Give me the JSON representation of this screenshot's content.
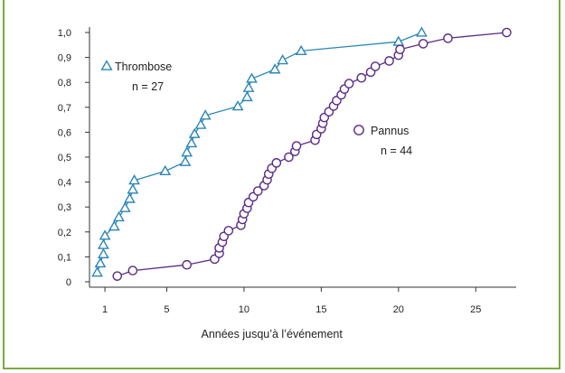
{
  "chart_data": {
    "type": "scatter",
    "title": "",
    "xlabel": "Années jusqu’à l’événement",
    "ylabel": "",
    "xlim": [
      0,
      27.5
    ],
    "ylim": [
      0,
      1.0
    ],
    "x_ticks": [
      1,
      5,
      10,
      15,
      20,
      25
    ],
    "y_ticks": [
      0,
      0.1,
      0.2,
      0.3,
      0.4,
      0.5,
      0.6,
      0.7,
      0.8,
      0.9,
      1.0
    ],
    "y_tick_labels": [
      "0",
      "0,1",
      "0,2",
      "0,3",
      "0,4",
      "0,5",
      "0,6",
      "0,7",
      "0,8",
      "0,9",
      "1,0"
    ],
    "grid": false,
    "series": [
      {
        "name": "Thrombose",
        "annotation": "n = 27",
        "marker": "triangle",
        "color": "#2a86b8",
        "points": [
          [
            0.5,
            0.037
          ],
          [
            0.7,
            0.074
          ],
          [
            0.9,
            0.111
          ],
          [
            0.9,
            0.148
          ],
          [
            1.0,
            0.185
          ],
          [
            1.6,
            0.222
          ],
          [
            1.9,
            0.259
          ],
          [
            2.3,
            0.296
          ],
          [
            2.6,
            0.333
          ],
          [
            2.8,
            0.37
          ],
          [
            2.9,
            0.407
          ],
          [
            4.9,
            0.444
          ],
          [
            6.2,
            0.481
          ],
          [
            6.3,
            0.519
          ],
          [
            6.6,
            0.556
          ],
          [
            6.8,
            0.593
          ],
          [
            7.2,
            0.63
          ],
          [
            7.5,
            0.667
          ],
          [
            9.6,
            0.704
          ],
          [
            10.2,
            0.741
          ],
          [
            10.3,
            0.778
          ],
          [
            10.5,
            0.815
          ],
          [
            12.0,
            0.852
          ],
          [
            12.5,
            0.889
          ],
          [
            13.7,
            0.926
          ],
          [
            20.0,
            0.963
          ],
          [
            21.5,
            1.0
          ]
        ]
      },
      {
        "name": "Pannus",
        "annotation": "n = 44",
        "marker": "circle",
        "color": "#5b2c83",
        "points": [
          [
            1.8,
            0.023
          ],
          [
            2.8,
            0.045
          ],
          [
            6.3,
            0.068
          ],
          [
            8.1,
            0.091
          ],
          [
            8.4,
            0.114
          ],
          [
            8.4,
            0.136
          ],
          [
            8.6,
            0.159
          ],
          [
            8.7,
            0.182
          ],
          [
            9.0,
            0.205
          ],
          [
            9.8,
            0.227
          ],
          [
            9.9,
            0.25
          ],
          [
            10.0,
            0.273
          ],
          [
            10.2,
            0.295
          ],
          [
            10.3,
            0.318
          ],
          [
            10.6,
            0.341
          ],
          [
            10.9,
            0.364
          ],
          [
            11.3,
            0.386
          ],
          [
            11.5,
            0.409
          ],
          [
            11.6,
            0.432
          ],
          [
            11.8,
            0.455
          ],
          [
            12.1,
            0.477
          ],
          [
            12.9,
            0.5
          ],
          [
            13.3,
            0.523
          ],
          [
            13.4,
            0.545
          ],
          [
            14.6,
            0.568
          ],
          [
            14.7,
            0.591
          ],
          [
            15.0,
            0.614
          ],
          [
            15.1,
            0.636
          ],
          [
            15.2,
            0.659
          ],
          [
            15.5,
            0.682
          ],
          [
            15.8,
            0.705
          ],
          [
            16.0,
            0.727
          ],
          [
            16.3,
            0.75
          ],
          [
            16.5,
            0.773
          ],
          [
            16.8,
            0.795
          ],
          [
            17.6,
            0.818
          ],
          [
            18.2,
            0.841
          ],
          [
            18.5,
            0.864
          ],
          [
            19.4,
            0.886
          ],
          [
            20.0,
            0.909
          ],
          [
            20.1,
            0.932
          ],
          [
            21.6,
            0.955
          ],
          [
            23.2,
            0.977
          ],
          [
            27.0,
            1.0
          ]
        ]
      }
    ]
  }
}
